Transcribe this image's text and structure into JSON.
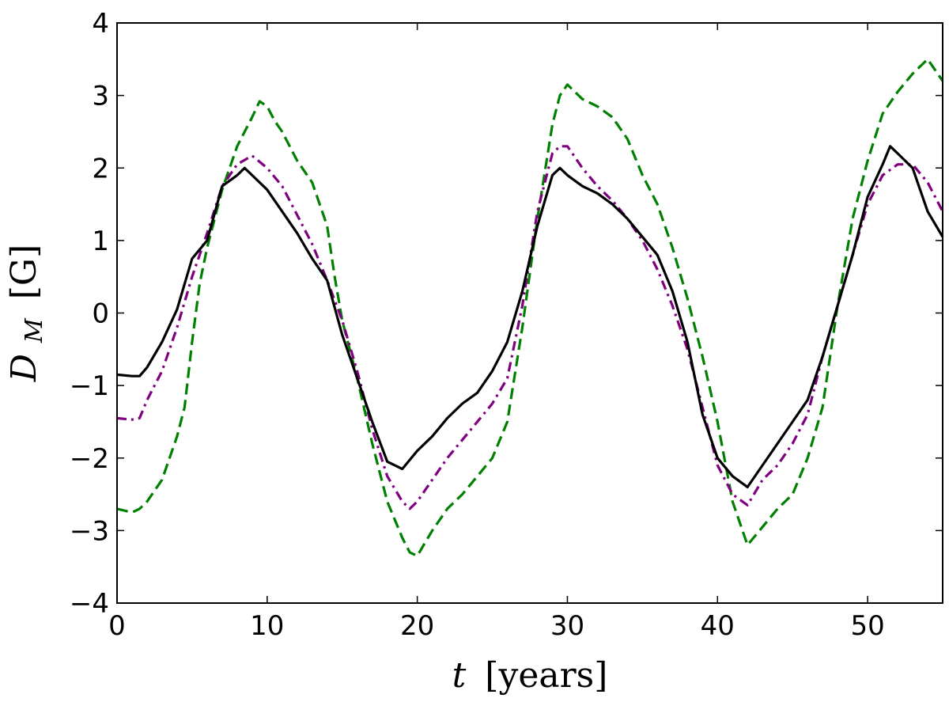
{
  "chart_data": {
    "type": "line",
    "title": "",
    "xlabel_var": "t",
    "xlabel_unit": "[years]",
    "ylabel_var": "D",
    "ylabel_sub": "M",
    "ylabel_unit": "[G]",
    "xlim": [
      0,
      55
    ],
    "ylim": [
      -4,
      4
    ],
    "xticks": [
      0,
      10,
      20,
      30,
      40,
      50
    ],
    "yticks": [
      -4,
      -3,
      -2,
      -1,
      0,
      1,
      2,
      3,
      4
    ],
    "xtick_labels": [
      "0",
      "10",
      "20",
      "30",
      "40",
      "50"
    ],
    "ytick_labels": [
      "−4",
      "−3",
      "−2",
      "−1",
      "0",
      "1",
      "2",
      "3",
      "4"
    ],
    "grid": false,
    "series": [
      {
        "style": "dashed",
        "color": "#008000",
        "points": [
          [
            0,
            -2.7
          ],
          [
            1,
            -2.75
          ],
          [
            1.5,
            -2.7
          ],
          [
            2,
            -2.6
          ],
          [
            3,
            -2.3
          ],
          [
            4,
            -1.7
          ],
          [
            4.5,
            -1.3
          ],
          [
            5,
            -0.4
          ],
          [
            5.5,
            0.4
          ],
          [
            6,
            0.9
          ],
          [
            7,
            1.7
          ],
          [
            8,
            2.3
          ],
          [
            9,
            2.7
          ],
          [
            9.5,
            2.92
          ],
          [
            10,
            2.85
          ],
          [
            10.5,
            2.65
          ],
          [
            11,
            2.5
          ],
          [
            12,
            2.1
          ],
          [
            13,
            1.8
          ],
          [
            14,
            1.2
          ],
          [
            14.5,
            0.5
          ],
          [
            15,
            -0.1
          ],
          [
            16,
            -0.9
          ],
          [
            17,
            -1.8
          ],
          [
            18,
            -2.6
          ],
          [
            19,
            -3.1
          ],
          [
            19.5,
            -3.3
          ],
          [
            20,
            -3.35
          ],
          [
            21,
            -3.0
          ],
          [
            22,
            -2.7
          ],
          [
            23,
            -2.5
          ],
          [
            24,
            -2.25
          ],
          [
            25,
            -2.0
          ],
          [
            26,
            -1.5
          ],
          [
            27,
            -0.2
          ],
          [
            28,
            1.3
          ],
          [
            29,
            2.6
          ],
          [
            29.5,
            3.0
          ],
          [
            30,
            3.15
          ],
          [
            31,
            2.95
          ],
          [
            32,
            2.85
          ],
          [
            33,
            2.7
          ],
          [
            34,
            2.4
          ],
          [
            35,
            1.9
          ],
          [
            36,
            1.5
          ],
          [
            37,
            0.9
          ],
          [
            38,
            0.2
          ],
          [
            39,
            -0.6
          ],
          [
            40,
            -1.5
          ],
          [
            41,
            -2.6
          ],
          [
            42,
            -3.2
          ],
          [
            43,
            -2.95
          ],
          [
            44,
            -2.7
          ],
          [
            45,
            -2.5
          ],
          [
            46,
            -2.0
          ],
          [
            47,
            -1.3
          ],
          [
            48,
            0.1
          ],
          [
            49,
            1.3
          ],
          [
            50,
            2.1
          ],
          [
            51,
            2.75
          ],
          [
            52,
            3.05
          ],
          [
            53,
            3.3
          ],
          [
            54,
            3.5
          ],
          [
            55,
            3.2
          ]
        ]
      },
      {
        "style": "dashdot",
        "color": "#800080",
        "points": [
          [
            0,
            -1.45
          ],
          [
            1,
            -1.47
          ],
          [
            1.5,
            -1.45
          ],
          [
            2,
            -1.2
          ],
          [
            3,
            -0.8
          ],
          [
            4,
            -0.2
          ],
          [
            5,
            0.5
          ],
          [
            6,
            1.1
          ],
          [
            7,
            1.75
          ],
          [
            8,
            2.05
          ],
          [
            9,
            2.17
          ],
          [
            10,
            2.0
          ],
          [
            11,
            1.75
          ],
          [
            12,
            1.35
          ],
          [
            13,
            0.95
          ],
          [
            14,
            0.45
          ],
          [
            15,
            -0.1
          ],
          [
            16,
            -0.8
          ],
          [
            17,
            -1.6
          ],
          [
            18,
            -2.25
          ],
          [
            19,
            -2.6
          ],
          [
            19.5,
            -2.7
          ],
          [
            20,
            -2.6
          ],
          [
            21,
            -2.3
          ],
          [
            22,
            -2.0
          ],
          [
            23,
            -1.75
          ],
          [
            24,
            -1.5
          ],
          [
            25,
            -1.25
          ],
          [
            26,
            -0.9
          ],
          [
            27,
            0.1
          ],
          [
            28,
            1.4
          ],
          [
            29,
            2.2
          ],
          [
            29.5,
            2.3
          ],
          [
            30,
            2.3
          ],
          [
            31,
            2.0
          ],
          [
            32,
            1.75
          ],
          [
            33,
            1.55
          ],
          [
            34,
            1.3
          ],
          [
            35,
            1.0
          ],
          [
            36,
            0.6
          ],
          [
            37,
            0.1
          ],
          [
            38,
            -0.5
          ],
          [
            39,
            -1.3
          ],
          [
            40,
            -2.1
          ],
          [
            41,
            -2.5
          ],
          [
            42,
            -2.65
          ],
          [
            43,
            -2.3
          ],
          [
            44,
            -2.1
          ],
          [
            45,
            -1.8
          ],
          [
            46,
            -1.4
          ],
          [
            47,
            -0.6
          ],
          [
            48,
            0.1
          ],
          [
            49,
            0.8
          ],
          [
            50,
            1.5
          ],
          [
            51,
            1.9
          ],
          [
            52,
            2.05
          ],
          [
            53,
            2.05
          ],
          [
            54,
            1.8
          ],
          [
            55,
            1.4
          ]
        ]
      },
      {
        "style": "solid",
        "color": "#000000",
        "points": [
          [
            0,
            -0.85
          ],
          [
            1,
            -0.87
          ],
          [
            1.5,
            -0.87
          ],
          [
            2,
            -0.75
          ],
          [
            3,
            -0.4
          ],
          [
            4,
            0.05
          ],
          [
            4.5,
            0.4
          ],
          [
            5,
            0.75
          ],
          [
            6,
            1.0
          ],
          [
            7,
            1.75
          ],
          [
            8,
            1.9
          ],
          [
            8.5,
            2.0
          ],
          [
            9,
            1.9
          ],
          [
            10,
            1.7
          ],
          [
            11,
            1.4
          ],
          [
            12,
            1.1
          ],
          [
            13,
            0.75
          ],
          [
            14,
            0.45
          ],
          [
            15,
            -0.3
          ],
          [
            16,
            -0.9
          ],
          [
            17,
            -1.5
          ],
          [
            18,
            -2.05
          ],
          [
            19,
            -2.15
          ],
          [
            20,
            -1.9
          ],
          [
            21,
            -1.7
          ],
          [
            22,
            -1.45
          ],
          [
            23,
            -1.25
          ],
          [
            24,
            -1.1
          ],
          [
            25,
            -0.8
          ],
          [
            26,
            -0.4
          ],
          [
            27,
            0.3
          ],
          [
            28,
            1.2
          ],
          [
            29,
            1.9
          ],
          [
            29.5,
            2.0
          ],
          [
            30,
            1.9
          ],
          [
            31,
            1.75
          ],
          [
            32,
            1.65
          ],
          [
            33,
            1.5
          ],
          [
            34,
            1.3
          ],
          [
            35,
            1.05
          ],
          [
            36,
            0.8
          ],
          [
            37,
            0.3
          ],
          [
            38,
            -0.4
          ],
          [
            39,
            -1.4
          ],
          [
            40,
            -2.0
          ],
          [
            41,
            -2.25
          ],
          [
            42,
            -2.4
          ],
          [
            43,
            -2.1
          ],
          [
            44,
            -1.8
          ],
          [
            45,
            -1.5
          ],
          [
            46,
            -1.2
          ],
          [
            47,
            -0.6
          ],
          [
            48,
            0.1
          ],
          [
            49,
            0.8
          ],
          [
            50,
            1.6
          ],
          [
            51,
            2.05
          ],
          [
            51.5,
            2.3
          ],
          [
            52,
            2.2
          ],
          [
            53,
            2.0
          ],
          [
            54,
            1.4
          ],
          [
            55,
            1.05
          ]
        ]
      }
    ]
  }
}
